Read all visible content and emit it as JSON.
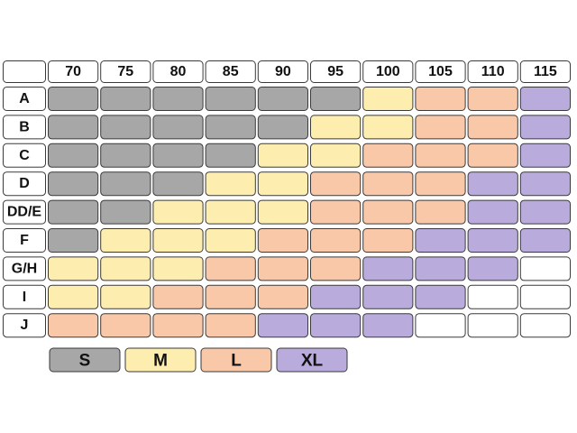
{
  "chart_data": {
    "type": "table",
    "columns": [
      "70",
      "75",
      "80",
      "85",
      "90",
      "95",
      "100",
      "105",
      "110",
      "115"
    ],
    "rows": [
      {
        "label": "A",
        "cells": [
          "S",
          "S",
          "S",
          "S",
          "S",
          "S",
          "M",
          "L",
          "L",
          "XL"
        ]
      },
      {
        "label": "B",
        "cells": [
          "S",
          "S",
          "S",
          "S",
          "S",
          "M",
          "M",
          "L",
          "L",
          "XL"
        ]
      },
      {
        "label": "C",
        "cells": [
          "S",
          "S",
          "S",
          "S",
          "M",
          "M",
          "L",
          "L",
          "L",
          "XL"
        ]
      },
      {
        "label": "D",
        "cells": [
          "S",
          "S",
          "S",
          "M",
          "M",
          "L",
          "L",
          "L",
          "XL",
          "XL"
        ]
      },
      {
        "label": "DD/E",
        "cells": [
          "S",
          "S",
          "M",
          "M",
          "M",
          "L",
          "L",
          "L",
          "XL",
          "XL"
        ]
      },
      {
        "label": "F",
        "cells": [
          "S",
          "M",
          "M",
          "M",
          "L",
          "L",
          "L",
          "XL",
          "XL",
          "XL"
        ]
      },
      {
        "label": "G/H",
        "cells": [
          "M",
          "M",
          "M",
          "L",
          "L",
          "L",
          "XL",
          "XL",
          "XL",
          ""
        ]
      },
      {
        "label": "I",
        "cells": [
          "M",
          "M",
          "L",
          "L",
          "L",
          "XL",
          "XL",
          "XL",
          "",
          ""
        ]
      },
      {
        "label": "J",
        "cells": [
          "L",
          "L",
          "L",
          "L",
          "XL",
          "XL",
          "XL",
          "",
          "",
          ""
        ]
      }
    ],
    "legend": [
      {
        "key": "S",
        "label": "S",
        "color": "#a7a7a7"
      },
      {
        "key": "M",
        "label": "M",
        "color": "#fdeeb0"
      },
      {
        "key": "L",
        "label": "L",
        "color": "#f9c8a8"
      },
      {
        "key": "XL",
        "label": "XL",
        "color": "#b9abdc"
      }
    ],
    "empty_color": "#ffffff"
  }
}
